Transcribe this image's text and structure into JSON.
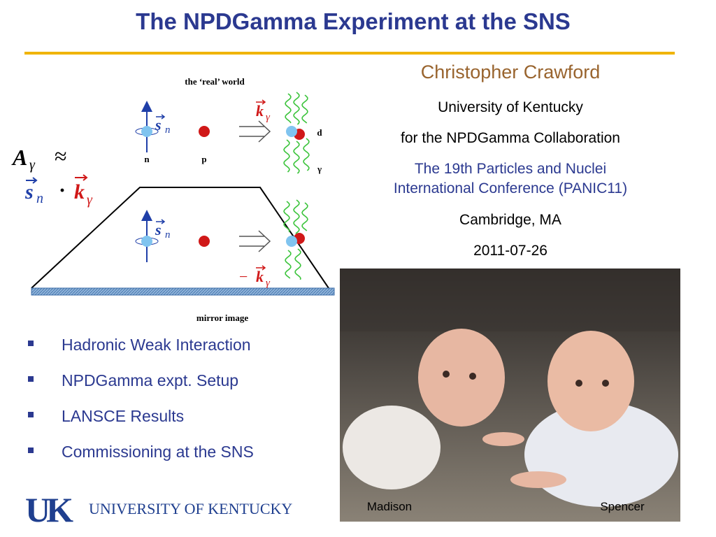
{
  "header": {
    "title": "The NPDGamma Experiment at the SNS"
  },
  "diagram": {
    "top_label": "the ‘real’ world",
    "bottom_label": "mirror image",
    "n": "n",
    "p": "p",
    "d": "d",
    "gamma": "γ",
    "spin_symbol": "s",
    "spin_sub": "n",
    "momentum_symbol": "k",
    "momentum_sub": "γ",
    "minus": "−"
  },
  "formula": {
    "lhs": "A",
    "lhs_sub": "γ",
    "approx": "≈",
    "s": "s",
    "s_sub": "n",
    "dot": "·",
    "k": "k",
    "k_sub": "γ"
  },
  "info": {
    "author": "Christopher Crawford",
    "university": "University of Kentucky",
    "collaboration": "for the NPDGamma Collaboration",
    "conference": [
      "The 19th Particles and Nuclei",
      "International Conference (PANIC11)"
    ],
    "location": "Cambridge, MA",
    "date": "2011-07-26"
  },
  "bullets": [
    "Hadronic Weak Interaction",
    "NPDGamma expt. Setup",
    "LANSCE Results",
    "Commissioning at the SNS"
  ],
  "photo": {
    "captions": [
      "Madison",
      "Spencer"
    ]
  },
  "logo": {
    "mark": "UK",
    "text": "UNIVERSITY OF KENTUCKY"
  }
}
